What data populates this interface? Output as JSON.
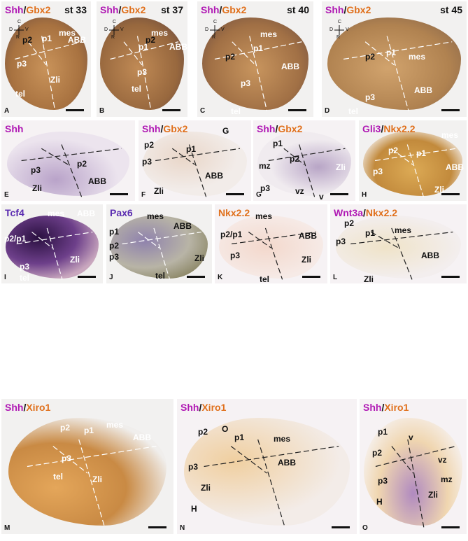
{
  "panels": [
    {
      "letter": "A",
      "title": [
        {
          "t": "Shh",
          "c": "mag"
        },
        {
          "t": "/",
          "c": "blk"
        },
        {
          "t": "Gbx2",
          "c": "org"
        }
      ],
      "stage": "st 33",
      "compass": [
        "C",
        "D",
        "V",
        "R"
      ],
      "labels": [
        "p2",
        "p1",
        "mes",
        "ABB",
        "p3",
        "Zli",
        "tel"
      ]
    },
    {
      "letter": "B",
      "title": [
        {
          "t": "Shh",
          "c": "mag"
        },
        {
          "t": "/",
          "c": "blk"
        },
        {
          "t": "Gbx2",
          "c": "org"
        }
      ],
      "stage": "st 37",
      "compass": [
        "C",
        "D",
        "V",
        "R"
      ],
      "labels": [
        "p2",
        "p1",
        "mes",
        "ABB",
        "p3",
        "tel"
      ]
    },
    {
      "letter": "C",
      "title": [
        {
          "t": "Shh",
          "c": "mag"
        },
        {
          "t": "/",
          "c": "blk"
        },
        {
          "t": "Gbx2",
          "c": "org"
        }
      ],
      "stage": "st 40",
      "compass": [
        "C",
        "D",
        "V",
        "R"
      ],
      "labels": [
        "p2",
        "p1",
        "mes",
        "ABB",
        "p3",
        "tel"
      ]
    },
    {
      "letter": "D",
      "title": [
        {
          "t": "Shh",
          "c": "mag"
        },
        {
          "t": "/",
          "c": "blk"
        },
        {
          "t": "Gbx2",
          "c": "org"
        }
      ],
      "stage": "st 45",
      "compass": [
        "C",
        "D",
        "V",
        "R"
      ],
      "labels": [
        "p2",
        "p1",
        "mes",
        "ABB",
        "p3",
        "tel"
      ]
    },
    {
      "letter": "E",
      "title": [
        {
          "t": "Shh",
          "c": "mag"
        }
      ],
      "labels": [
        "p2",
        "p3",
        "ABB",
        "Zli"
      ]
    },
    {
      "letter": "F",
      "title": [
        {
          "t": "Shh",
          "c": "mag"
        },
        {
          "t": "/",
          "c": "blk"
        },
        {
          "t": "Gbx2",
          "c": "org"
        }
      ],
      "labels": [
        "G",
        "p2",
        "p1",
        "p3",
        "ABB",
        "Zli"
      ]
    },
    {
      "letter": "G",
      "title": [
        {
          "t": "Shh",
          "c": "mag"
        },
        {
          "t": "/",
          "c": "blk"
        },
        {
          "t": "Gbx2",
          "c": "org"
        }
      ],
      "labels": [
        "p1",
        "p2",
        "mz",
        "Zli",
        "p3",
        "vz",
        "v"
      ]
    },
    {
      "letter": "H",
      "title": [
        {
          "t": "Gli3",
          "c": "mag"
        },
        {
          "t": "/",
          "c": "blk"
        },
        {
          "t": "Nkx2.2",
          "c": "org"
        }
      ],
      "labels": [
        "mes",
        "p2",
        "p1",
        "ABB",
        "p3",
        "Zli"
      ]
    },
    {
      "letter": "I",
      "title": [
        {
          "t": "Tcf4",
          "c": "pur"
        }
      ],
      "labels": [
        "mes",
        "ABB",
        "p2/p1",
        "Zli",
        "p3",
        "tel"
      ]
    },
    {
      "letter": "J",
      "title": [
        {
          "t": "Pax6",
          "c": "pur"
        }
      ],
      "labels": [
        "mes",
        "p1",
        "ABB",
        "p2",
        "p3",
        "Zli",
        "tel"
      ]
    },
    {
      "letter": "K",
      "title": [
        {
          "t": "Nkx2.2",
          "c": "org"
        }
      ],
      "labels": [
        "mes",
        "p2/p1",
        "ABB",
        "p3",
        "Zli",
        "tel"
      ]
    },
    {
      "letter": "L",
      "title": [
        {
          "t": "Wnt3a",
          "c": "mag"
        },
        {
          "t": "/",
          "c": "blk"
        },
        {
          "t": "Nkx2.2",
          "c": "org"
        }
      ],
      "labels": [
        "p2",
        "p1",
        "mes",
        "p3",
        "ABB",
        "Zli"
      ]
    },
    {
      "letter": "M",
      "title": [
        {
          "t": "Shh",
          "c": "mag"
        },
        {
          "t": "/",
          "c": "blk"
        },
        {
          "t": "Xiro1",
          "c": "org"
        }
      ],
      "labels": [
        "p2",
        "p1",
        "mes",
        "ABB",
        "p3",
        "tel",
        "Zli"
      ]
    },
    {
      "letter": "N",
      "title": [
        {
          "t": "Shh",
          "c": "mag"
        },
        {
          "t": "/",
          "c": "blk"
        },
        {
          "t": "Xiro1",
          "c": "org"
        }
      ],
      "labels": [
        "p2",
        "O",
        "p1",
        "mes",
        "p3",
        "ABB",
        "Zli",
        "H"
      ]
    },
    {
      "letter": "O",
      "title": [
        {
          "t": "Shh",
          "c": "mag"
        },
        {
          "t": "/",
          "c": "blk"
        },
        {
          "t": "Xiro1",
          "c": "org"
        }
      ],
      "labels": [
        "p1",
        "v",
        "p2",
        "vz",
        "mz",
        "p3",
        "H",
        "Zli"
      ]
    }
  ]
}
